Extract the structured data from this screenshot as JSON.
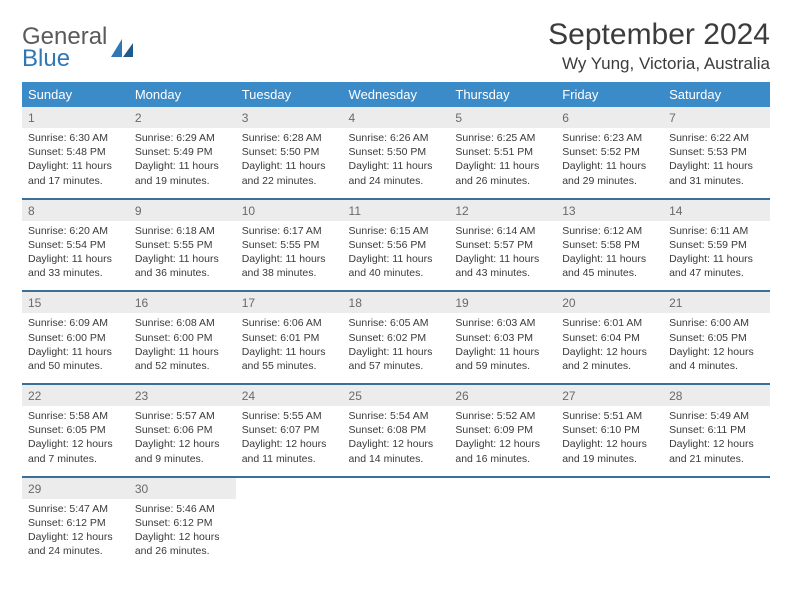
{
  "brand": {
    "line1": "General",
    "line2": "Blue",
    "color_gray": "#5a5a5a",
    "color_blue": "#2f77b6"
  },
  "title": "September 2024",
  "location": "Wy Yung, Victoria, Australia",
  "colors": {
    "header_bg": "#3b8bc9",
    "header_text": "#ffffff",
    "week_divider": "#3b6f99",
    "daynum_bg": "#ececec",
    "daynum_text": "#6a6a6a",
    "body_text": "#3a3a3a",
    "page_bg": "#ffffff"
  },
  "typography": {
    "title_fontsize": 30,
    "location_fontsize": 17,
    "dayheader_fontsize": 13,
    "daynum_fontsize": 12,
    "cell_fontsize": 10.5
  },
  "day_headers": [
    "Sunday",
    "Monday",
    "Tuesday",
    "Wednesday",
    "Thursday",
    "Friday",
    "Saturday"
  ],
  "weeks": [
    [
      {
        "n": "1",
        "l1": "Sunrise: 6:30 AM",
        "l2": "Sunset: 5:48 PM",
        "l3": "Daylight: 11 hours",
        "l4": "and 17 minutes."
      },
      {
        "n": "2",
        "l1": "Sunrise: 6:29 AM",
        "l2": "Sunset: 5:49 PM",
        "l3": "Daylight: 11 hours",
        "l4": "and 19 minutes."
      },
      {
        "n": "3",
        "l1": "Sunrise: 6:28 AM",
        "l2": "Sunset: 5:50 PM",
        "l3": "Daylight: 11 hours",
        "l4": "and 22 minutes."
      },
      {
        "n": "4",
        "l1": "Sunrise: 6:26 AM",
        "l2": "Sunset: 5:50 PM",
        "l3": "Daylight: 11 hours",
        "l4": "and 24 minutes."
      },
      {
        "n": "5",
        "l1": "Sunrise: 6:25 AM",
        "l2": "Sunset: 5:51 PM",
        "l3": "Daylight: 11 hours",
        "l4": "and 26 minutes."
      },
      {
        "n": "6",
        "l1": "Sunrise: 6:23 AM",
        "l2": "Sunset: 5:52 PM",
        "l3": "Daylight: 11 hours",
        "l4": "and 29 minutes."
      },
      {
        "n": "7",
        "l1": "Sunrise: 6:22 AM",
        "l2": "Sunset: 5:53 PM",
        "l3": "Daylight: 11 hours",
        "l4": "and 31 minutes."
      }
    ],
    [
      {
        "n": "8",
        "l1": "Sunrise: 6:20 AM",
        "l2": "Sunset: 5:54 PM",
        "l3": "Daylight: 11 hours",
        "l4": "and 33 minutes."
      },
      {
        "n": "9",
        "l1": "Sunrise: 6:18 AM",
        "l2": "Sunset: 5:55 PM",
        "l3": "Daylight: 11 hours",
        "l4": "and 36 minutes."
      },
      {
        "n": "10",
        "l1": "Sunrise: 6:17 AM",
        "l2": "Sunset: 5:55 PM",
        "l3": "Daylight: 11 hours",
        "l4": "and 38 minutes."
      },
      {
        "n": "11",
        "l1": "Sunrise: 6:15 AM",
        "l2": "Sunset: 5:56 PM",
        "l3": "Daylight: 11 hours",
        "l4": "and 40 minutes."
      },
      {
        "n": "12",
        "l1": "Sunrise: 6:14 AM",
        "l2": "Sunset: 5:57 PM",
        "l3": "Daylight: 11 hours",
        "l4": "and 43 minutes."
      },
      {
        "n": "13",
        "l1": "Sunrise: 6:12 AM",
        "l2": "Sunset: 5:58 PM",
        "l3": "Daylight: 11 hours",
        "l4": "and 45 minutes."
      },
      {
        "n": "14",
        "l1": "Sunrise: 6:11 AM",
        "l2": "Sunset: 5:59 PM",
        "l3": "Daylight: 11 hours",
        "l4": "and 47 minutes."
      }
    ],
    [
      {
        "n": "15",
        "l1": "Sunrise: 6:09 AM",
        "l2": "Sunset: 6:00 PM",
        "l3": "Daylight: 11 hours",
        "l4": "and 50 minutes."
      },
      {
        "n": "16",
        "l1": "Sunrise: 6:08 AM",
        "l2": "Sunset: 6:00 PM",
        "l3": "Daylight: 11 hours",
        "l4": "and 52 minutes."
      },
      {
        "n": "17",
        "l1": "Sunrise: 6:06 AM",
        "l2": "Sunset: 6:01 PM",
        "l3": "Daylight: 11 hours",
        "l4": "and 55 minutes."
      },
      {
        "n": "18",
        "l1": "Sunrise: 6:05 AM",
        "l2": "Sunset: 6:02 PM",
        "l3": "Daylight: 11 hours",
        "l4": "and 57 minutes."
      },
      {
        "n": "19",
        "l1": "Sunrise: 6:03 AM",
        "l2": "Sunset: 6:03 PM",
        "l3": "Daylight: 11 hours",
        "l4": "and 59 minutes."
      },
      {
        "n": "20",
        "l1": "Sunrise: 6:01 AM",
        "l2": "Sunset: 6:04 PM",
        "l3": "Daylight: 12 hours",
        "l4": "and 2 minutes."
      },
      {
        "n": "21",
        "l1": "Sunrise: 6:00 AM",
        "l2": "Sunset: 6:05 PM",
        "l3": "Daylight: 12 hours",
        "l4": "and 4 minutes."
      }
    ],
    [
      {
        "n": "22",
        "l1": "Sunrise: 5:58 AM",
        "l2": "Sunset: 6:05 PM",
        "l3": "Daylight: 12 hours",
        "l4": "and 7 minutes."
      },
      {
        "n": "23",
        "l1": "Sunrise: 5:57 AM",
        "l2": "Sunset: 6:06 PM",
        "l3": "Daylight: 12 hours",
        "l4": "and 9 minutes."
      },
      {
        "n": "24",
        "l1": "Sunrise: 5:55 AM",
        "l2": "Sunset: 6:07 PM",
        "l3": "Daylight: 12 hours",
        "l4": "and 11 minutes."
      },
      {
        "n": "25",
        "l1": "Sunrise: 5:54 AM",
        "l2": "Sunset: 6:08 PM",
        "l3": "Daylight: 12 hours",
        "l4": "and 14 minutes."
      },
      {
        "n": "26",
        "l1": "Sunrise: 5:52 AM",
        "l2": "Sunset: 6:09 PM",
        "l3": "Daylight: 12 hours",
        "l4": "and 16 minutes."
      },
      {
        "n": "27",
        "l1": "Sunrise: 5:51 AM",
        "l2": "Sunset: 6:10 PM",
        "l3": "Daylight: 12 hours",
        "l4": "and 19 minutes."
      },
      {
        "n": "28",
        "l1": "Sunrise: 5:49 AM",
        "l2": "Sunset: 6:11 PM",
        "l3": "Daylight: 12 hours",
        "l4": "and 21 minutes."
      }
    ],
    [
      {
        "n": "29",
        "l1": "Sunrise: 5:47 AM",
        "l2": "Sunset: 6:12 PM",
        "l3": "Daylight: 12 hours",
        "l4": "and 24 minutes."
      },
      {
        "n": "30",
        "l1": "Sunrise: 5:46 AM",
        "l2": "Sunset: 6:12 PM",
        "l3": "Daylight: 12 hours",
        "l4": "and 26 minutes."
      },
      {
        "empty": true
      },
      {
        "empty": true
      },
      {
        "empty": true
      },
      {
        "empty": true
      },
      {
        "empty": true
      }
    ]
  ]
}
